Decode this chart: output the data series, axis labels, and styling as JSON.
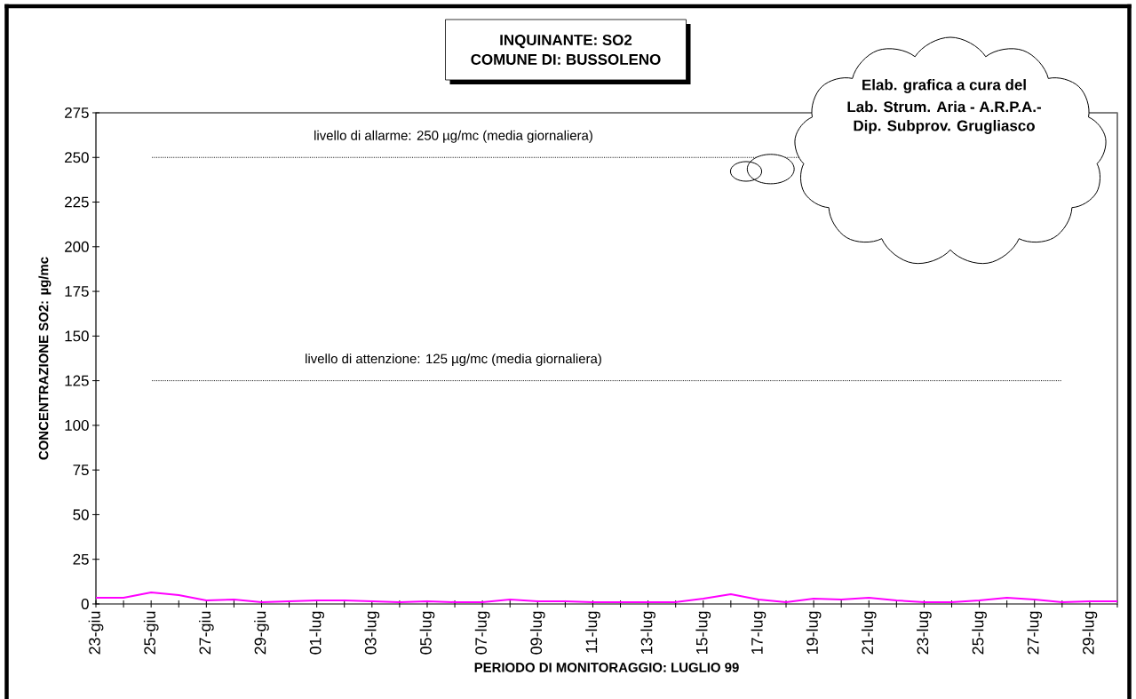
{
  "chart_data": {
    "type": "line",
    "title": "INQUINANTE: SO2",
    "subtitle": "COMUNE DI:  BUSSOLENO",
    "xlabel": "PERIODO DI MONITORAGGIO: LUGLIO 99",
    "ylabel": "CONCENTRAZIONE SO2:  µg/mc",
    "categories": [
      "23-giu",
      null,
      "25-giu",
      null,
      "27-giu",
      null,
      "29-giu",
      null,
      "01-lug",
      null,
      "03-lug",
      null,
      "05-lug",
      null,
      "07-lug",
      null,
      "09-lug",
      null,
      "11-lug",
      null,
      "13-lug",
      null,
      "15-lug",
      null,
      "17-lug",
      null,
      "19-lug",
      null,
      "21-lug",
      null,
      "23-lug",
      null,
      "25-lug",
      null,
      "27-lug",
      null,
      "29-lug",
      null
    ],
    "series": [
      {
        "color": "#ff00ff",
        "values": [
          3.5,
          3.5,
          6.5,
          5,
          2,
          2.5,
          1,
          1.5,
          2,
          2,
          1.5,
          1,
          1.5,
          1,
          1,
          2.5,
          1.5,
          1.5,
          1,
          1,
          1,
          1,
          3,
          5.5,
          2.5,
          1,
          3,
          2.5,
          3.5,
          2,
          1,
          1,
          2,
          3.5,
          2.5,
          1,
          1.5,
          1.5
        ]
      }
    ],
    "ylim": [
      0,
      275
    ],
    "yticks": [
      0,
      25,
      50,
      75,
      100,
      125,
      150,
      175,
      200,
      225,
      250,
      275
    ],
    "ref_lines": [
      {
        "axis": "y",
        "value": 250,
        "label": "livello di allarme: 250 µg/mc (media giornaliera)",
        "color": "#000000",
        "line_style": "dotted"
      },
      {
        "axis": "y",
        "value": 125,
        "label": "livello di attenzione: 125 µg/mc (media giornaliera)",
        "color": "#000000",
        "line_style": "dotted"
      }
    ],
    "annotations": [
      "Elab. grafica a cura del",
      "Lab. Strum. Aria - A.R.P.A.-",
      "Dip. Subprov. Grugliasco"
    ],
    "marker": "none",
    "line_style": "solid"
  }
}
